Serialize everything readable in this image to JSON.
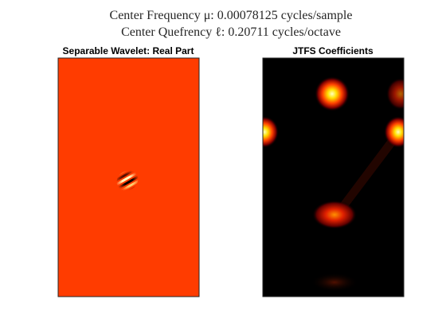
{
  "title": [
    "Center Frequency μ: 0.00078125 cycles/sample",
    "Center Quefrency ℓ: 0.20711 cycles/octave"
  ],
  "chart_data": [
    {
      "type": "image",
      "title": "Separable Wavelet: Real Part"
    },
    {
      "type": "image",
      "title": "JTFS Coefficients"
    }
  ]
}
